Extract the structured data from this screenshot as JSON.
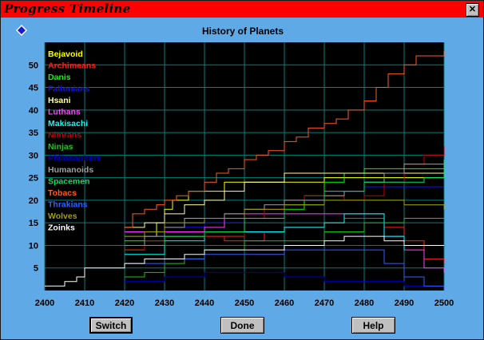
{
  "window": {
    "title": "Progress Timeline",
    "close_label": "✕"
  },
  "chart_title": "History of Planets",
  "buttons": {
    "switch": "Switch",
    "done": "Done",
    "help": "Help"
  },
  "colors": {
    "window_bg": "#5fa9e6",
    "titlebar": "#ff0000",
    "plot_bg": "#000000",
    "grid": "#008080"
  },
  "chart_data": {
    "type": "line",
    "title": "History of Planets",
    "xlabel": "",
    "ylabel": "",
    "xlim": [
      2400,
      2500
    ],
    "ylim": [
      0,
      55
    ],
    "x_ticks": [
      2400,
      2410,
      2420,
      2430,
      2440,
      2450,
      2460,
      2470,
      2480,
      2490,
      2500
    ],
    "y_ticks": [
      5,
      10,
      15,
      20,
      25,
      30,
      35,
      40,
      45,
      50
    ],
    "legend_position": "top-left",
    "series": [
      {
        "name": "Bejavoid",
        "color": "#ffff00",
        "x": [
          2420,
          2425,
          2428,
          2430,
          2432,
          2436,
          2440,
          2445,
          2450,
          2460,
          2470,
          2480,
          2490,
          2500
        ],
        "y": [
          9,
          12,
          15,
          18,
          20,
          22,
          22,
          24,
          24,
          24,
          25,
          25,
          25,
          25
        ]
      },
      {
        "name": "Archimeans",
        "color": "#ff2020",
        "x": [
          2420,
          2425,
          2430,
          2440,
          2445,
          2450,
          2455,
          2460,
          2465,
          2470,
          2475,
          2480,
          2485,
          2490,
          2495,
          2500
        ],
        "y": [
          13,
          13,
          12,
          12,
          11,
          11,
          13,
          14,
          14,
          15,
          16,
          16,
          14,
          11,
          7,
          6
        ]
      },
      {
        "name": "Danis",
        "color": "#00ff00",
        "x": [
          2420,
          2430,
          2440,
          2450,
          2460,
          2465,
          2470,
          2475,
          2480,
          2485,
          2490,
          2495,
          2500
        ],
        "y": [
          11,
          12,
          13,
          16,
          18,
          21,
          24,
          26,
          27,
          27,
          27,
          27,
          25
        ]
      },
      {
        "name": "Faltonians",
        "color": "#1010ff",
        "x": [
          2420,
          2430,
          2440,
          2450,
          2460,
          2470,
          2480,
          2490,
          2500
        ],
        "y": [
          12,
          14,
          15,
          18,
          20,
          22,
          23,
          23,
          23
        ]
      },
      {
        "name": "Hsani",
        "color": "#ffffa0",
        "x": [
          2420,
          2425,
          2430,
          2435,
          2440,
          2445,
          2450,
          2455,
          2460,
          2470,
          2480,
          2490,
          2500
        ],
        "y": [
          14,
          15,
          17,
          19,
          20,
          22,
          24,
          24,
          26,
          26,
          26,
          26,
          26
        ]
      },
      {
        "name": "Luthans",
        "color": "#ff40ff",
        "x": [
          2420,
          2425,
          2430,
          2440,
          2445,
          2450,
          2460,
          2470,
          2475,
          2480,
          2485,
          2490,
          2495,
          2500
        ],
        "y": [
          13,
          13,
          13,
          14,
          17,
          17,
          17,
          17,
          17,
          17,
          12,
          9,
          5,
          4
        ]
      },
      {
        "name": "Makisachi",
        "color": "#00ffff",
        "x": [
          2420,
          2430,
          2440,
          2450,
          2460,
          2470,
          2475,
          2480,
          2485,
          2490
        ],
        "y": [
          8,
          11,
          12,
          13,
          14,
          15,
          17,
          17,
          12,
          9
        ]
      },
      {
        "name": "Nimrans",
        "color": "#cc0000",
        "x": [
          2420,
          2425,
          2430,
          2440,
          2450,
          2455,
          2460,
          2465,
          2470,
          2475,
          2480,
          2485,
          2490,
          2495,
          2500
        ],
        "y": [
          9,
          11,
          12,
          12,
          16,
          18,
          20,
          21,
          21,
          20,
          21,
          24,
          28,
          30,
          32
        ]
      },
      {
        "name": "Ninjas",
        "color": "#20c020",
        "x": [
          2420,
          2425,
          2430,
          2435,
          2440,
          2450,
          2460,
          2470,
          2480,
          2490,
          2500
        ],
        "y": [
          3,
          4,
          6,
          7,
          9,
          11,
          11,
          13,
          15,
          16,
          16
        ]
      },
      {
        "name": "Philosophers",
        "color": "#0000c0",
        "x": [
          2420,
          2430,
          2440,
          2450,
          2460,
          2470,
          2480,
          2490,
          2500
        ],
        "y": [
          2,
          3,
          4,
          4,
          3,
          2,
          2,
          1,
          1
        ]
      },
      {
        "name": "Humanoids",
        "color": "#a0a0a0",
        "x": [
          2420,
          2425,
          2430,
          2435,
          2440,
          2445,
          2450,
          2455,
          2460,
          2465,
          2470,
          2475,
          2480,
          2485,
          2490,
          2495,
          2500
        ],
        "y": [
          10,
          12,
          14,
          16,
          16,
          17,
          18,
          19,
          20,
          20,
          21,
          22,
          24,
          26,
          28,
          28,
          29
        ]
      },
      {
        "name": "Spacemen",
        "color": "#00e060",
        "x": [
          2420,
          2430,
          2440,
          2450,
          2460,
          2470,
          2480,
          2490,
          2495,
          2500
        ],
        "y": [
          10,
          12,
          13,
          16,
          19,
          22,
          24,
          24,
          25,
          29
        ]
      },
      {
        "name": "Tobacs",
        "color": "#ff5a1a",
        "x": [
          2420,
          2422,
          2425,
          2428,
          2430,
          2433,
          2436,
          2440,
          2443,
          2446,
          2450,
          2453,
          2456,
          2460,
          2463,
          2466,
          2470,
          2473,
          2476,
          2480,
          2483,
          2486,
          2490,
          2493,
          2496,
          2500
        ],
        "y": [
          14,
          17,
          18,
          19,
          20,
          21,
          22,
          24,
          26,
          27,
          29,
          30,
          31,
          33,
          34,
          36,
          37,
          38,
          40,
          42,
          45,
          48,
          50,
          52,
          52,
          53
        ]
      },
      {
        "name": "Thrakians",
        "color": "#3060ff",
        "x": [
          2420,
          2430,
          2440,
          2450,
          2460,
          2470,
          2480,
          2485,
          2490,
          2495,
          2500
        ],
        "y": [
          6,
          7,
          8,
          8,
          9,
          9,
          9,
          6,
          3,
          1,
          0
        ]
      },
      {
        "name": "Wolves",
        "color": "#a0a000",
        "x": [
          2420,
          2425,
          2430,
          2440,
          2450,
          2460,
          2470,
          2480,
          2490,
          2500
        ],
        "y": [
          12,
          13,
          15,
          16,
          18,
          19,
          20,
          20,
          19,
          18
        ]
      },
      {
        "name": "Zoinks",
        "color": "#ffffff",
        "x": [
          2400,
          2402,
          2405,
          2408,
          2410,
          2412,
          2415,
          2420,
          2425,
          2430,
          2435,
          2440,
          2450,
          2460,
          2470,
          2475,
          2480,
          2485,
          2490,
          2500
        ],
        "y": [
          1,
          1,
          2,
          3,
          5,
          5,
          5,
          6,
          7,
          7,
          8,
          9,
          9,
          10,
          11,
          12,
          12,
          11,
          10,
          10
        ]
      }
    ]
  }
}
